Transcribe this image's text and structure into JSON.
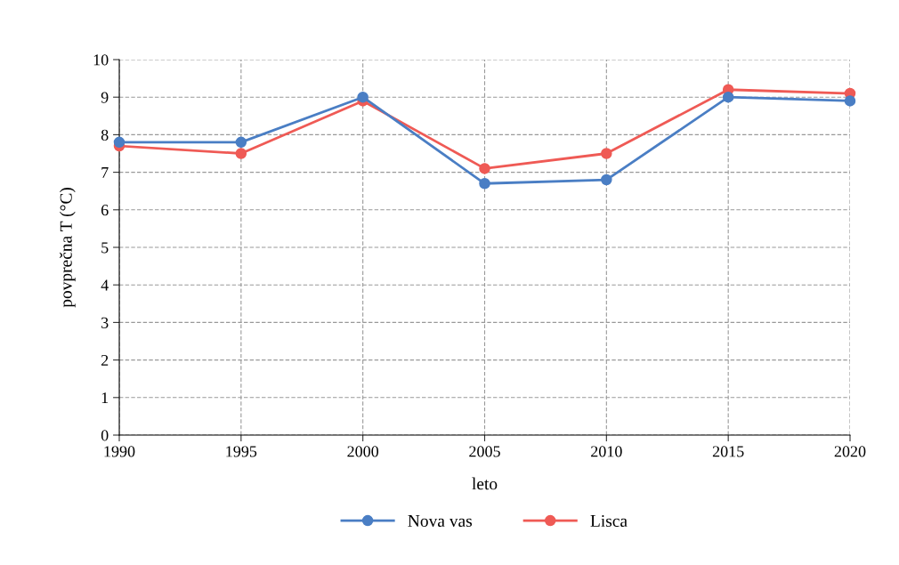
{
  "chart_data": {
    "type": "line",
    "xlabel": "leto",
    "ylabel": "povprečna T (°C)",
    "x": [
      1990,
      1995,
      2000,
      2005,
      2010,
      2015,
      2020
    ],
    "series": [
      {
        "name": "Nova vas",
        "color": "#4a7ec4",
        "values": [
          7.8,
          7.8,
          9.0,
          6.7,
          6.8,
          9.0,
          8.9
        ]
      },
      {
        "name": "Lisca",
        "color": "#ef5a55",
        "values": [
          7.7,
          7.5,
          8.9,
          7.1,
          7.5,
          9.2,
          9.1
        ]
      }
    ],
    "xlim": [
      1990,
      2020
    ],
    "xticks": [
      1990,
      1995,
      2000,
      2005,
      2010,
      2015,
      2020
    ],
    "ylim": [
      0,
      10
    ],
    "yticks": [
      0,
      1,
      2,
      3,
      4,
      5,
      6,
      7,
      8,
      9,
      10
    ],
    "grid": true,
    "legend": "bottom",
    "marker": "circle",
    "line_style": "solid"
  }
}
